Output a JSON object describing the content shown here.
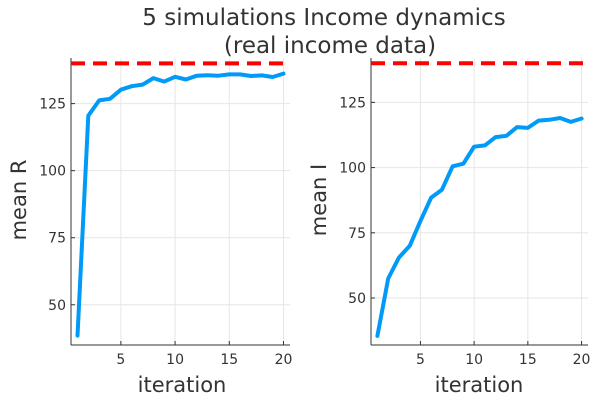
{
  "figure": {
    "title_line1": "5 simulations Income dynamics",
    "title_line2": "(real income data)"
  },
  "colors": {
    "series": "#009af9",
    "reference": "#ff0000",
    "text": "#333333",
    "grid": "#e6e6e6"
  },
  "chart_data": [
    {
      "type": "line",
      "xlabel": "iteration",
      "ylabel": "mean R",
      "xlim": [
        0.4,
        20.6
      ],
      "ylim": [
        35,
        142
      ],
      "xticks": [
        5,
        10,
        15,
        20
      ],
      "yticks": [
        50,
        75,
        100,
        125
      ],
      "grid": true,
      "legend": "none",
      "x": [
        1,
        2,
        3,
        4,
        5,
        6,
        7,
        8,
        9,
        10,
        11,
        12,
        13,
        14,
        15,
        16,
        17,
        18,
        19,
        20
      ],
      "series": [
        {
          "values": [
            38.5,
            120.5,
            126.2,
            126.8,
            130.2,
            131.5,
            132.1,
            134.5,
            133.2,
            135.0,
            134.0,
            135.4,
            135.6,
            135.4,
            135.9,
            135.9,
            135.3,
            135.5,
            134.9,
            136.2
          ]
        }
      ],
      "reference_line": 140
    },
    {
      "type": "line",
      "xlabel": "iteration",
      "ylabel": "mean I",
      "xlim": [
        0.4,
        20.6
      ],
      "ylim": [
        32,
        142
      ],
      "xticks": [
        5,
        10,
        15,
        20
      ],
      "yticks": [
        50,
        75,
        100,
        125
      ],
      "grid": true,
      "legend": "none",
      "x": [
        1,
        2,
        3,
        4,
        5,
        6,
        7,
        8,
        9,
        10,
        11,
        12,
        13,
        14,
        15,
        16,
        17,
        18,
        19,
        20
      ],
      "series": [
        {
          "values": [
            35.5,
            57.5,
            65.5,
            70.0,
            79.5,
            88.5,
            91.5,
            100.5,
            101.5,
            108.0,
            108.5,
            111.7,
            112.2,
            115.5,
            115.2,
            118.0,
            118.3,
            119.0,
            117.5,
            118.8
          ]
        }
      ],
      "reference_line": 140
    }
  ]
}
